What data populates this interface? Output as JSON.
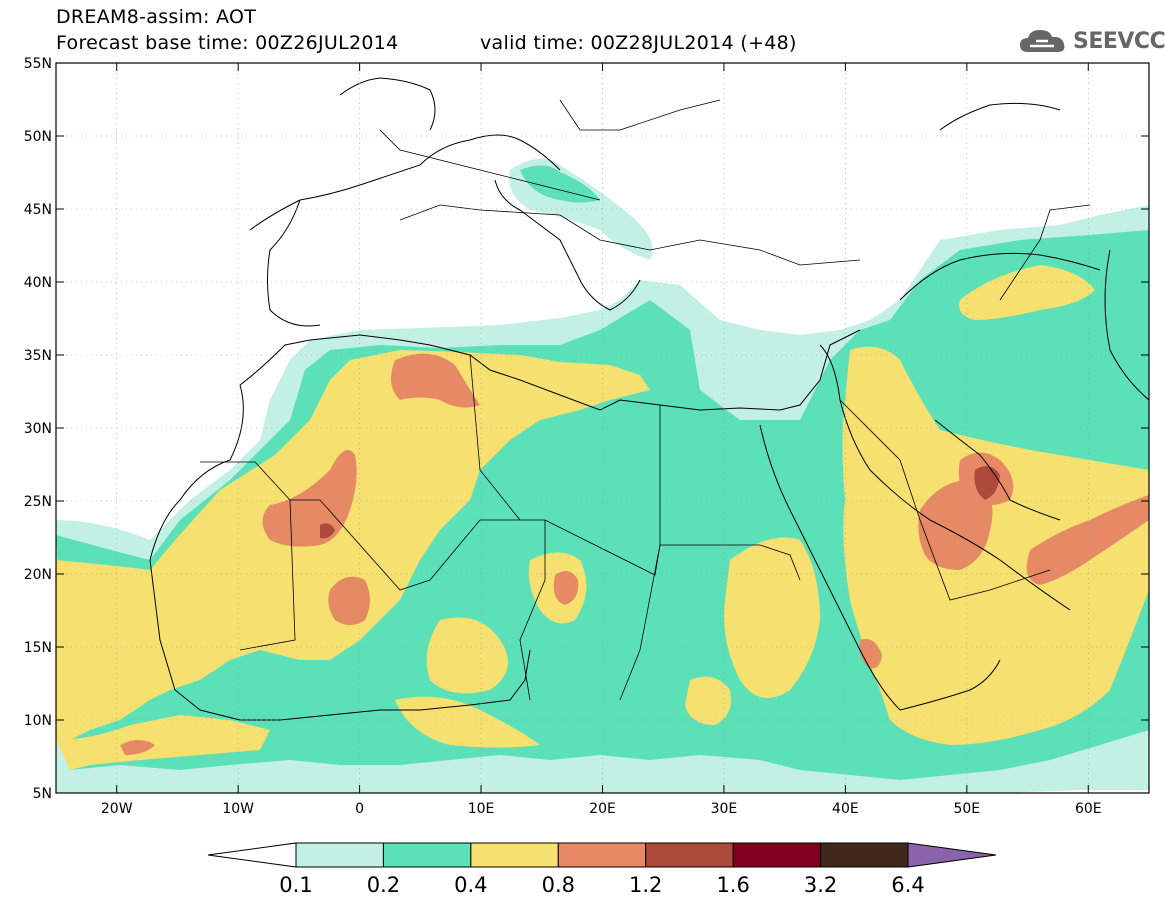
{
  "header": {
    "title": "DREAM8-assim: AOT",
    "base_time": "Forecast base time: 00Z26JUL2014",
    "valid_time": "valid time: 00Z28JUL2014 (+48)"
  },
  "logo": {
    "text": "SEEVCCC",
    "icon": "cloud-icon"
  },
  "map": {
    "lon_range": [
      -25,
      65
    ],
    "lat_range": [
      5,
      55
    ],
    "lon_ticks": [
      {
        "v": -20,
        "label": "20W"
      },
      {
        "v": -10,
        "label": "10W"
      },
      {
        "v": 0,
        "label": "0"
      },
      {
        "v": 10,
        "label": "10E"
      },
      {
        "v": 20,
        "label": "20E"
      },
      {
        "v": 30,
        "label": "30E"
      },
      {
        "v": 40,
        "label": "40E"
      },
      {
        "v": 50,
        "label": "50E"
      },
      {
        "v": 60,
        "label": "60E"
      }
    ],
    "lat_ticks": [
      {
        "v": 5,
        "label": "5N"
      },
      {
        "v": 10,
        "label": "10N"
      },
      {
        "v": 15,
        "label": "15N"
      },
      {
        "v": 20,
        "label": "20N"
      },
      {
        "v": 25,
        "label": "25N"
      },
      {
        "v": 30,
        "label": "30N"
      },
      {
        "v": 35,
        "label": "35N"
      },
      {
        "v": 40,
        "label": "40N"
      },
      {
        "v": 45,
        "label": "45N"
      },
      {
        "v": 50,
        "label": "50N"
      },
      {
        "v": 55,
        "label": "55N"
      }
    ]
  },
  "colorbar": {
    "levels": [
      "0.1",
      "0.2",
      "0.4",
      "0.8",
      "1.2",
      "1.6",
      "3.2",
      "6.4"
    ],
    "colors": [
      "#ffffff",
      "#c2f0e4",
      "#5ce0b8",
      "#f5e070",
      "#e58a65",
      "#ad4a3c",
      "#800020",
      "#40281a",
      "#8a64aa"
    ]
  }
}
